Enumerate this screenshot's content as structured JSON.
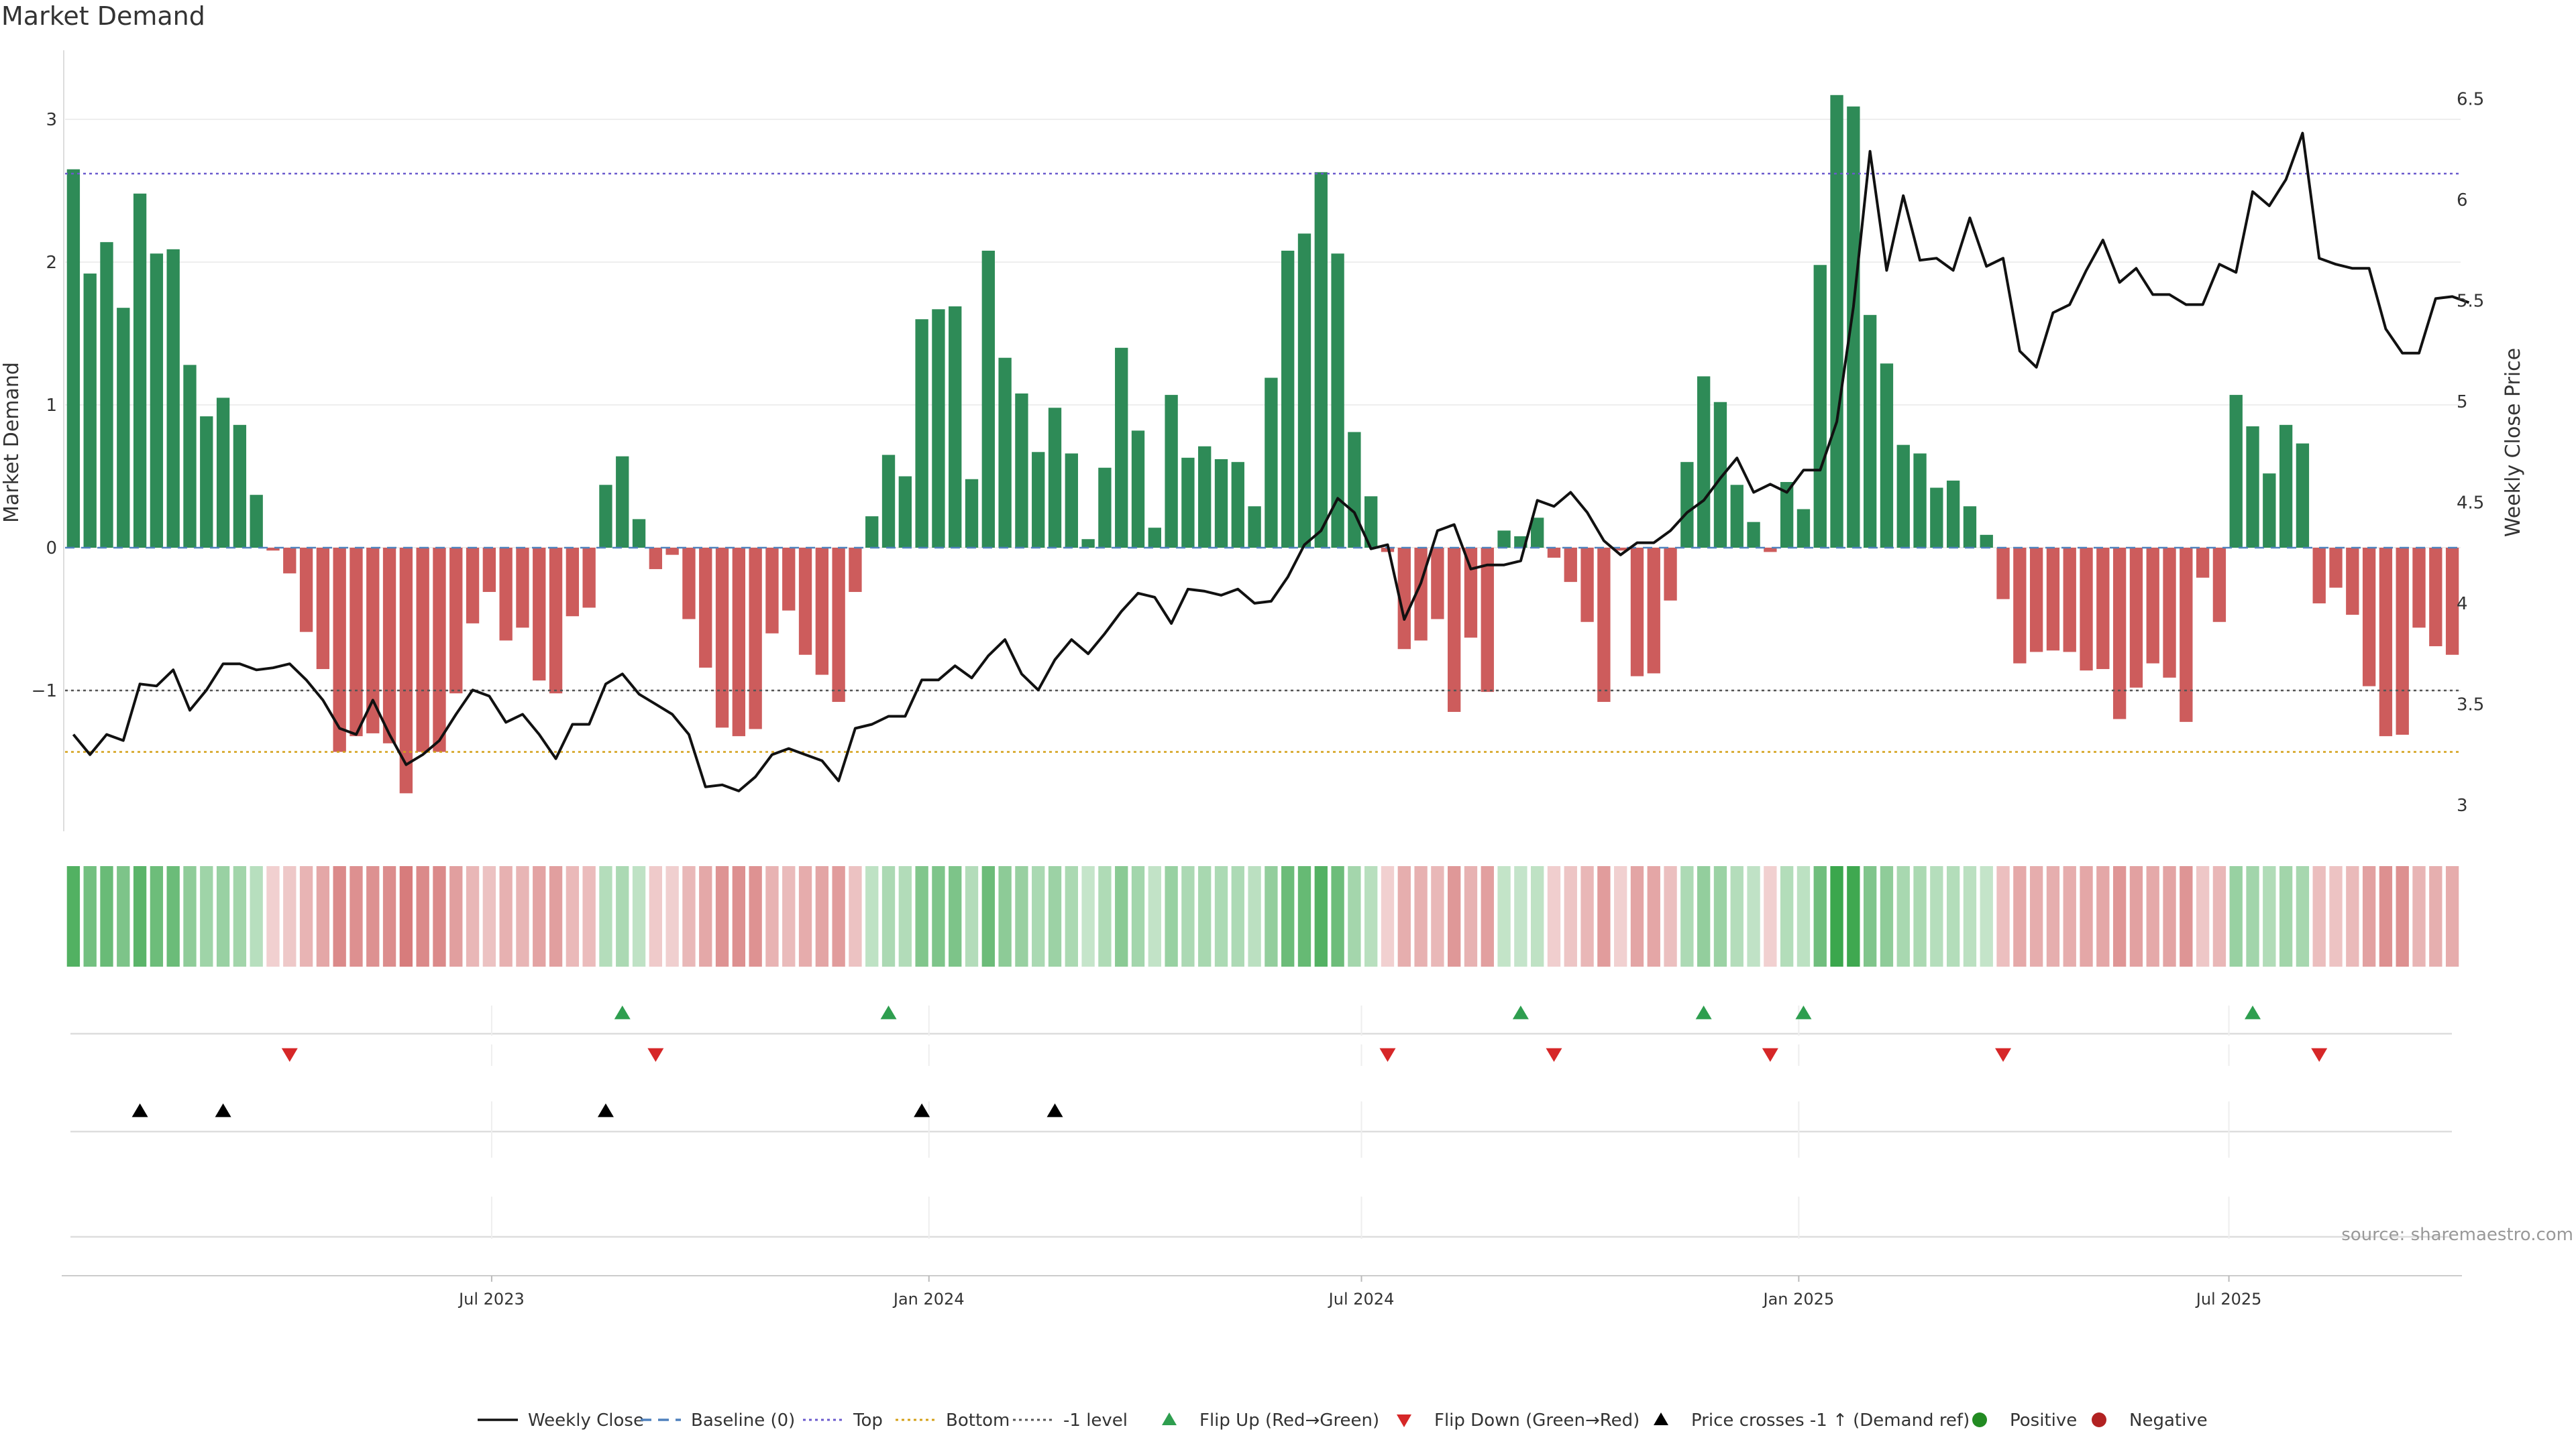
{
  "chart_data": {
    "type": "bar",
    "title": "Market Demand",
    "ylabel": "Market Demand",
    "y2label": "Weekly Close Price",
    "xticks": [
      "Jul 2023",
      "Jan 2024",
      "Jul 2024",
      "Jan 2025",
      "Jul 2025"
    ],
    "ylim": [
      -2,
      3.3
    ],
    "yticks": [
      -1,
      0,
      1,
      2,
      3
    ],
    "yticklabels": [
      "−1",
      "0",
      "1",
      "2",
      "3"
    ],
    "y2lim": [
      3.0,
      6.7
    ],
    "y2ticks": [
      3,
      3.5,
      4,
      4.5,
      5,
      5.5,
      6,
      6.5
    ],
    "y2ticklabels": [
      "3",
      "3.5",
      "4",
      "4.5",
      "5",
      "5.5",
      "6",
      "6.5"
    ],
    "reference_lines": {
      "top": 2.62,
      "baseline": 0,
      "minus_one": -1,
      "bottom": -1.43
    },
    "week_start": "2023-01-06",
    "demand": [
      2.65,
      1.92,
      2.14,
      1.68,
      2.48,
      2.06,
      2.09,
      1.28,
      0.92,
      1.05,
      0.86,
      0.37,
      -0.02,
      -0.18,
      -0.59,
      -0.85,
      -1.43,
      -1.32,
      -1.3,
      -1.37,
      -1.72,
      -1.43,
      -1.43,
      -1.02,
      -0.53,
      -0.31,
      -0.65,
      -0.56,
      -0.93,
      -1.02,
      -0.48,
      -0.42,
      0.44,
      0.64,
      0.2,
      -0.15,
      -0.05,
      -0.5,
      -0.84,
      -1.26,
      -1.32,
      -1.27,
      -0.6,
      -0.44,
      -0.75,
      -0.89,
      -1.08,
      -0.31,
      0.22,
      0.65,
      0.5,
      1.6,
      1.67,
      1.69,
      0.48,
      2.08,
      1.33,
      1.08,
      0.67,
      0.98,
      0.66,
      0.06,
      0.56,
      1.4,
      0.82,
      0.14,
      1.07,
      0.63,
      0.71,
      0.62,
      0.6,
      0.29,
      1.19,
      2.08,
      2.2,
      2.63,
      2.06,
      0.81,
      0.36,
      -0.03,
      -0.71,
      -0.65,
      -0.5,
      -1.15,
      -0.63,
      -1.01,
      0.12,
      0.08,
      0.21,
      -0.07,
      -0.24,
      -0.52,
      -1.08,
      -0.02,
      -0.9,
      -0.88,
      -0.37,
      0.6,
      1.2,
      1.02,
      0.44,
      0.18,
      -0.03,
      0.46,
      0.27,
      1.98,
      3.17,
      3.09,
      1.63,
      1.29,
      0.72,
      0.66,
      0.42,
      0.47,
      0.29,
      0.09,
      -0.36,
      -0.81,
      -0.73,
      -0.72,
      -0.73,
      -0.86,
      -0.85,
      -1.2,
      -0.98,
      -0.81,
      -0.91,
      -1.22,
      -0.21,
      -0.52,
      1.07,
      0.85,
      0.52,
      0.86,
      0.73,
      -0.39,
      -0.28,
      -0.47,
      -0.97,
      -1.32,
      -1.31,
      -0.56,
      -0.69,
      -0.75
    ],
    "weekly_close": [
      3.43,
      3.33,
      3.43,
      3.4,
      3.68,
      3.67,
      3.75,
      3.55,
      3.65,
      3.78,
      3.78,
      3.75,
      3.76,
      3.78,
      3.7,
      3.6,
      3.46,
      3.43,
      3.6,
      3.43,
      3.28,
      3.33,
      3.4,
      3.53,
      3.65,
      3.62,
      3.49,
      3.53,
      3.43,
      3.31,
      3.48,
      3.48,
      3.68,
      3.73,
      3.63,
      3.58,
      3.53,
      3.43,
      3.17,
      3.18,
      3.15,
      3.22,
      3.33,
      3.36,
      3.33,
      3.3,
      3.2,
      3.46,
      3.48,
      3.52,
      3.52,
      3.7,
      3.7,
      3.77,
      3.71,
      3.82,
      3.9,
      3.73,
      3.65,
      3.8,
      3.9,
      3.83,
      3.93,
      4.04,
      4.13,
      4.11,
      3.98,
      4.15,
      4.14,
      4.12,
      4.15,
      4.08,
      4.09,
      4.21,
      4.37,
      4.44,
      4.6,
      4.53,
      4.35,
      4.37,
      4.0,
      4.18,
      4.44,
      4.47,
      4.25,
      4.27,
      4.27,
      4.29,
      4.59,
      4.56,
      4.63,
      4.53,
      4.39,
      4.32,
      4.38,
      4.38,
      4.44,
      4.53,
      4.59,
      4.7,
      4.8,
      4.63,
      4.67,
      4.63,
      4.74,
      4.74,
      4.98,
      5.55,
      6.32,
      5.73,
      6.1,
      5.78,
      5.79,
      5.73,
      5.99,
      5.75,
      5.79,
      5.33,
      5.25,
      5.52,
      5.56,
      5.73,
      5.88,
      5.67,
      5.74,
      5.61,
      5.61,
      5.56,
      5.56,
      5.76,
      5.72,
      6.12,
      6.05,
      6.18,
      6.41,
      5.79,
      5.76,
      5.74,
      5.74,
      5.44,
      5.32,
      5.32,
      5.59,
      5.6,
      5.57
    ],
    "flip_up_weeks": [
      33,
      49,
      87,
      98,
      104,
      131
    ],
    "flip_down_weeks": [
      13,
      35,
      79,
      89,
      102,
      116,
      135
    ],
    "price_cross_weeks": [
      4,
      9,
      32,
      51,
      59
    ],
    "legend": [
      "Weekly Close",
      "Baseline (0)",
      "Top",
      "Bottom",
      "-1 level",
      "Flip Up (Red→Green)",
      "Flip Down (Green→Red)",
      "Price crosses -1 ↑ (Demand ref)",
      "Positive",
      "Negative"
    ],
    "legend_position": "bottom",
    "source": "source: sharemaestro.com",
    "colors": {
      "positive": "#2e8b57",
      "negative": "#cd5c5c",
      "line": "#111111",
      "top": "#6a5acd",
      "bottom": "#d4a017",
      "minus_one": "#555555",
      "baseline": "#4f81bd",
      "flip_up": "#2e9e4f",
      "flip_down": "#d62728",
      "cross": "#000000",
      "legend_positive": "#228b22",
      "legend_negative": "#b22222"
    }
  }
}
